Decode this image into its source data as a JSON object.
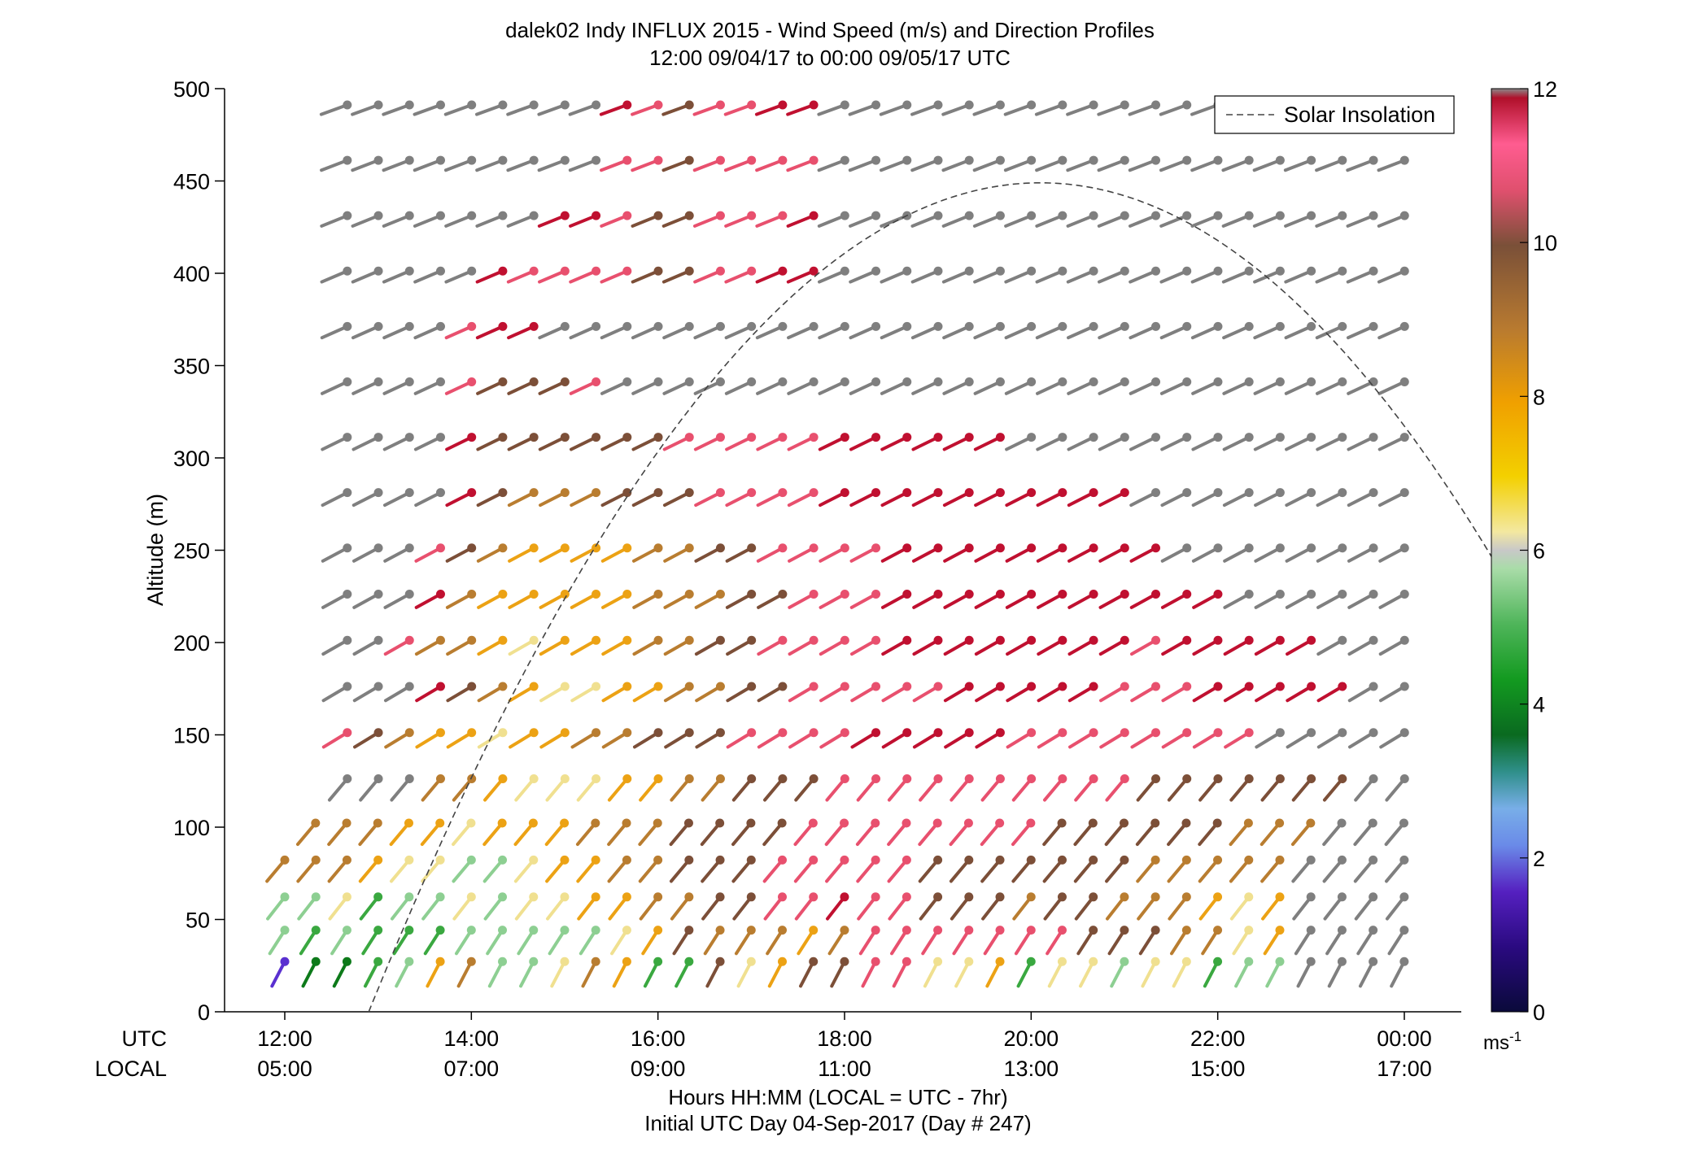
{
  "chart_data": {
    "type": "wind_barb_profile",
    "title": "dalek02 Indy INFLUX 2015 - Wind Speed (m/s) and Direction Profiles",
    "subtitle": "12:00 09/04/17 to 00:00 09/05/17  UTC",
    "ylabel": "Altitude (m)",
    "ylim": [
      0,
      500
    ],
    "yticks": [
      "0",
      "50",
      "100",
      "150",
      "200",
      "250",
      "300",
      "350",
      "400",
      "450",
      "500"
    ],
    "xlim_hours_utc": [
      11.65,
      25.0
    ],
    "x_row_labels": [
      "UTC",
      "LOCAL"
    ],
    "xticks_utc": [
      "12:00",
      "14:00",
      "16:00",
      "18:00",
      "20:00",
      "22:00",
      "00:00"
    ],
    "xticks_local": [
      "05:00",
      "07:00",
      "09:00",
      "11:00",
      "13:00",
      "15:00",
      "17:00"
    ],
    "xlabel": "Hours HH:MM  (LOCAL = UTC - 7hr)",
    "xlabel2": "Initial UTC Day 04-Sep-2017 (Day # 247)",
    "legend": "Solar Insolation",
    "legend_location": "top-right",
    "colorbar": {
      "range": [
        0,
        12
      ],
      "ticks": [
        "0",
        "2",
        "4",
        "6",
        "8",
        "10",
        "12"
      ],
      "unit": "ms",
      "unit_exp": "-1"
    },
    "time_step_hours": 0.3333,
    "altitude_levels_m": [
      25,
      42,
      60,
      80,
      100,
      124,
      149,
      174,
      199,
      224,
      249,
      279,
      309,
      339,
      369,
      399,
      429,
      459,
      489
    ],
    "level_start_hour": [
      12.0,
      12.0,
      12.0,
      12.0,
      12.33,
      12.67,
      12.67,
      12.67,
      12.67,
      12.67,
      12.67,
      12.67,
      12.67,
      12.67,
      12.67,
      12.67,
      12.67,
      12.67,
      12.67
    ],
    "speed_grid_ms": [
      [
        1.5,
        3.5,
        3.5,
        4.5,
        5.5,
        7.5,
        8.5,
        5.5,
        5.5,
        6.5,
        8.5,
        7.5,
        4.5,
        4.5,
        9.5,
        6.5,
        7.5,
        9.5,
        9.5,
        10.5,
        10.5,
        6.5,
        6.5,
        7.5,
        4.5,
        6.5,
        6.5,
        5.5,
        6.5,
        6.5,
        4.5,
        5.5,
        5.5
      ],
      [
        5.5,
        4.5,
        5.5,
        4.5,
        4.5,
        4.5,
        5.5,
        5.5,
        5.5,
        5.5,
        5.5,
        6.5,
        7.5,
        9.5,
        8.5,
        8.5,
        8.5,
        7.5,
        8.5,
        10.5,
        10.5,
        10.5,
        10.5,
        10.5,
        10.5,
        10.5,
        9.5,
        9.5,
        9.5,
        8.5,
        8.5,
        6.5,
        7.5
      ],
      [
        5.5,
        5.5,
        6.5,
        4.5,
        5.5,
        5.5,
        6.5,
        5.5,
        6.5,
        6.5,
        7.5,
        7.5,
        8.5,
        8.5,
        9.5,
        9.5,
        10.5,
        10.5,
        11.5,
        10.5,
        10.5,
        9.5,
        9.5,
        9.5,
        8.5,
        9.5,
        9.5,
        8.5,
        8.5,
        8.5,
        7.5,
        6.5,
        7.5
      ],
      [
        8.5,
        8.5,
        8.5,
        7.5,
        6.5,
        6.5,
        5.5,
        5.5,
        6.5,
        7.5,
        7.5,
        8.5,
        8.5,
        9.5,
        9.5,
        9.5,
        10.5,
        10.5,
        10.5,
        10.5,
        10.5,
        9.5,
        9.5,
        9.5,
        9.5,
        9.5,
        9.5,
        9.5,
        8.5,
        8.5,
        8.5,
        8.5,
        8.5
      ],
      [
        8.5,
        8.5,
        8.5,
        7.5,
        7.5,
        6.5,
        7.5,
        7.5,
        7.5,
        8.5,
        8.5,
        8.5,
        9.5,
        9.5,
        9.5,
        9.5,
        10.5,
        10.5,
        10.5,
        10.5,
        10.5,
        10.5,
        10.5,
        10.5,
        9.5,
        9.5,
        9.5,
        9.5,
        9.5,
        9.5,
        8.5,
        8.5,
        8.5
      ],
      [
        8.5,
        8.5,
        7.5,
        6.5,
        6.5,
        6.5,
        7.5,
        7.5,
        8.5,
        8.5,
        9.5,
        9.5,
        9.5,
        10.5,
        10.5,
        10.5,
        10.5,
        10.5,
        10.5,
        10.5,
        10.5,
        10.5,
        10.5,
        9.5,
        9.5,
        9.5,
        9.5,
        9.5,
        9.5,
        9.5
      ],
      [
        10.5,
        9.5,
        8.5,
        7.5,
        7.5,
        6.5,
        7.5,
        7.5,
        8.5,
        8.5,
        9.5,
        9.5,
        9.5,
        10.5,
        10.5,
        10.5,
        10.5,
        11.5,
        11.5,
        11.5,
        11.5,
        11.5,
        10.5,
        10.5,
        10.5,
        10.5,
        10.5,
        10.5,
        10.5,
        10.5
      ],
      [
        11.5,
        9.5,
        8.5,
        7.5,
        6.5,
        6.5,
        7.5,
        7.5,
        8.5,
        8.5,
        9.5,
        9.5,
        10.5,
        10.5,
        10.5,
        10.5,
        10.5,
        11.5,
        11.5,
        11.5,
        11.5,
        11.5,
        10.5,
        10.5,
        10.5,
        11.5,
        11.5,
        11.5,
        11.5,
        11.5
      ],
      [
        10.5,
        8.5,
        8.5,
        7.5,
        6.5,
        7.5,
        7.5,
        7.5,
        8.5,
        8.5,
        9.5,
        9.5,
        10.5,
        10.5,
        10.5,
        10.5,
        11.5,
        11.5,
        11.5,
        11.5,
        11.5,
        11.5,
        11.5,
        11.5,
        10.5,
        11.5,
        11.5,
        11.5,
        11.5,
        11.5
      ],
      [
        11.5,
        8.5,
        7.5,
        7.5,
        7.5,
        7.5,
        7.5,
        8.5,
        8.5,
        8.5,
        9.5,
        9.5,
        10.5,
        10.5,
        10.5,
        11.5,
        11.5,
        11.5,
        11.5,
        11.5,
        11.5,
        11.5,
        11.5,
        11.5,
        11.5,
        11.5
      ],
      [
        10.5,
        9.5,
        8.5,
        7.5,
        7.5,
        7.5,
        7.5,
        8.5,
        8.5,
        9.5,
        9.5,
        10.5,
        10.5,
        10.5,
        10.5,
        11.5,
        11.5,
        11.5,
        11.5,
        11.5,
        11.5,
        11.5,
        11.5,
        11.5
      ],
      [
        11.5,
        9.5,
        8.5,
        8.5,
        8.5,
        9.5,
        9.5,
        9.5,
        10.5,
        10.5,
        10.5,
        10.5,
        11.5,
        11.5,
        11.5,
        11.5,
        11.5,
        11.5,
        11.5,
        11.5,
        11.5,
        11.5
      ],
      [
        11.5,
        9.5,
        9.5,
        9.5,
        9.5,
        9.5,
        9.5,
        10.5,
        10.5,
        10.5,
        10.5,
        10.5,
        11.5,
        11.5,
        11.5,
        11.5,
        11.5,
        11.5
      ],
      [
        10.5,
        9.5,
        9.5,
        9.5,
        10.5
      ],
      [
        10.5,
        11.5,
        11.5
      ],
      [
        11.5,
        10.5,
        10.5,
        10.5,
        10.5,
        9.5,
        9.5,
        10.5,
        10.5,
        11.5,
        11.5
      ],
      [
        11.5,
        11.5,
        10.5,
        9.5,
        9.5,
        10.5,
        10.5,
        10.5,
        11.5
      ],
      [
        10.5,
        10.5,
        9.5,
        10.5,
        10.5,
        10.5,
        10.5
      ],
      [
        11.5,
        10.5,
        9.5,
        10.5,
        10.5,
        11.5,
        11.5
      ]
    ],
    "colored_start_index": [
      0,
      0,
      0,
      0,
      0,
      3,
      0,
      3,
      2,
      3,
      3,
      4,
      4,
      4,
      4,
      5,
      7,
      9,
      9
    ],
    "gray_segments": [
      [],
      [],
      [],
      [],
      [],
      [],
      [],
      [],
      [],
      [],
      [],
      [],
      [],
      [],
      [],
      [],
      [],
      [],
      []
    ]
  }
}
